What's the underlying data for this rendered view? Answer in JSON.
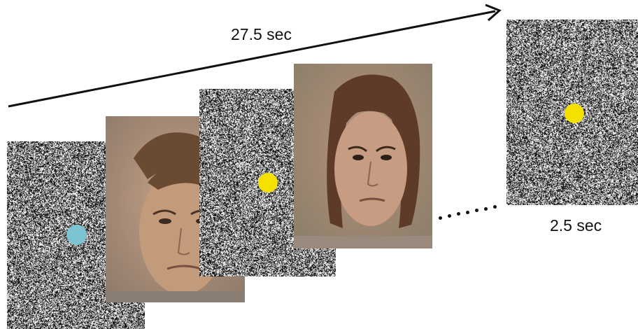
{
  "timeline": {
    "total_duration_label": "27.5 sec",
    "final_frame_duration_label": "2.5 sec"
  },
  "frames": [
    {
      "kind": "noise",
      "fixation_color": "#7cc4d1",
      "description_icon": "noise-frame"
    },
    {
      "kind": "face",
      "expression": "angry",
      "description_icon": "face-frame"
    },
    {
      "kind": "noise",
      "fixation_color": "#f5e100",
      "description_icon": "noise-frame"
    },
    {
      "kind": "face",
      "expression": "angry",
      "description_icon": "face-frame"
    },
    {
      "kind": "noise",
      "fixation_color": "#f5e100",
      "description_icon": "noise-frame"
    }
  ],
  "colors": {
    "arrow": "#111111",
    "ellipsis": "#111111",
    "fixation_blue": "#7cc4d1",
    "fixation_yellow": "#f5e100"
  }
}
